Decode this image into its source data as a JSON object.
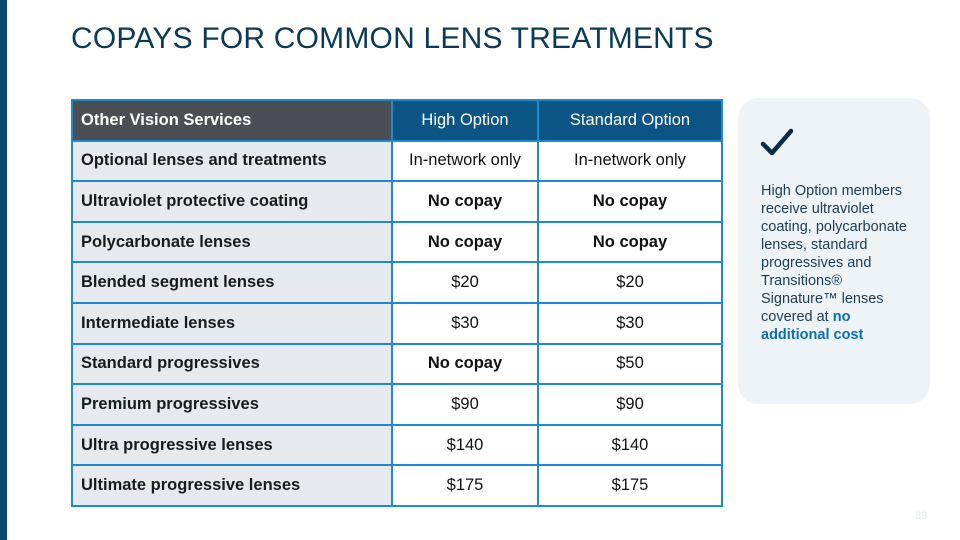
{
  "title": "COPAYS FOR COMMON LENS TREATMENTS",
  "table": {
    "headers": [
      "Other Vision Services",
      "High Option",
      "Standard Option"
    ],
    "rows": [
      {
        "service": "Optional lenses and treatments",
        "high": "In-network only",
        "standard": "In-network only"
      },
      {
        "service": "Ultraviolet protective coating",
        "high": "No copay",
        "standard": "No copay"
      },
      {
        "service": "Polycarbonate lenses",
        "high": "No copay",
        "standard": "No copay"
      },
      {
        "service": "Blended segment lenses",
        "high": "$20",
        "standard": "$20"
      },
      {
        "service": "Intermediate lenses",
        "high": "$30",
        "standard": "$30"
      },
      {
        "service": "Standard progressives",
        "high": "No copay",
        "standard": "$50"
      },
      {
        "service": "Premium progressives",
        "high": "$90",
        "standard": "$90"
      },
      {
        "service": "Ultra progressive lenses",
        "high": "$140",
        "standard": "$140"
      },
      {
        "service": "Ultimate progressive lenses",
        "high": "$175",
        "standard": "$175"
      }
    ]
  },
  "note": {
    "icon": "checkmark-icon",
    "text": "High Option members receive ultraviolet coating, polycarbonate lenses, standard progressives and Transitions® Signature™ lenses covered at ",
    "highlight": "no additional cost"
  },
  "page_number": "89",
  "colors": {
    "title": "#0a3a56",
    "header_dark": "#4b4f55",
    "header_blue": "#0b5584",
    "border": "#1c8bd4",
    "note_bg": "#eef3f8",
    "accent": "#0b6fb0"
  }
}
